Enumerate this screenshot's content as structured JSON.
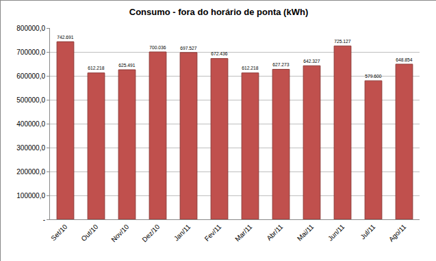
{
  "chart_data": {
    "type": "bar",
    "title": "Consumo - fora do horário de ponta (kWh)",
    "categories": [
      "Set/10",
      "Out/10",
      "Nov/10",
      "Dez/10",
      "Jan/11",
      "Fev/11",
      "Mar/11",
      "Abr/11",
      "Mai/11",
      "Jun/11",
      "Jul/11",
      "Ago/11"
    ],
    "values": [
      742691,
      612218,
      625491,
      700036,
      697527,
      672436,
      612218,
      627273,
      642327,
      725127,
      579600,
      648854
    ],
    "value_labels": [
      "742.691",
      "612.218",
      "625.491",
      "700.036",
      "697.527",
      "672.436",
      "612.218",
      "627.273",
      "642.327",
      "725.127",
      "579.600",
      "648.854"
    ],
    "data_labels": true,
    "color": "#c0504d",
    "ylim": [
      0,
      800000
    ],
    "yticks": [
      {
        "value": 0,
        "label": "-"
      },
      {
        "value": 100000,
        "label": "100000,0"
      },
      {
        "value": 200000,
        "label": "200000,0"
      },
      {
        "value": 300000,
        "label": "300000,0"
      },
      {
        "value": 400000,
        "label": "400000,0"
      },
      {
        "value": 500000,
        "label": "500000,0"
      },
      {
        "value": 600000,
        "label": "600000,0"
      },
      {
        "value": 700000,
        "label": "700000,0"
      },
      {
        "value": 800000,
        "label": "800000,0"
      }
    ],
    "grid": true
  }
}
